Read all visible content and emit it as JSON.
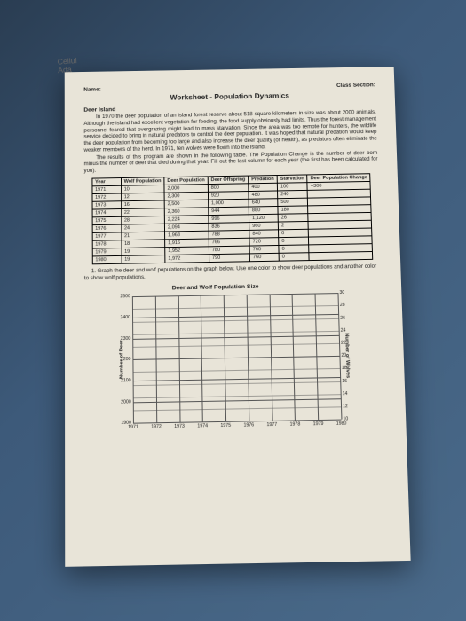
{
  "corner": {
    "l1": "Cellul",
    "l2": "Ada"
  },
  "header": {
    "name": "Name:",
    "section": "Class Section:"
  },
  "title": "Worksheet - Population Dynamics",
  "section_head": "Deer Island",
  "p1": "In 1970 the deer population of an island forest reserve about 518 square kilometers in size was about 2000 animals. Although the island had excellent vegetation for feeding, the food supply obviously had limits. Thus the forest management personnel feared that overgrazing might lead to mass starvation. Since the area was too remote for hunters, the wildlife service decided to bring in natural predators to control the deer population. It was hoped that natural predation would keep the deer population from becoming too large and also increase the deer quality (or health), as predators often eliminate the weaker members of the herd. In 1971, ten wolves were flown into the island.",
  "p2": "The results of this program are shown in the following table. The Population Change is the number of deer born minus the number of deer that died during that year. Fill out the last column for each year (the first has been calculated for you).",
  "table": {
    "headers": [
      "Year",
      "Wolf Population",
      "Deer Population",
      "Deer Offspring",
      "Predation",
      "Starvation",
      "Deer Population Change"
    ],
    "rows": [
      [
        "1971",
        "10",
        "2,000",
        "800",
        "400",
        "100",
        "+300"
      ],
      [
        "1972",
        "12",
        "2,300",
        "920",
        "480",
        "240",
        ""
      ],
      [
        "1973",
        "16",
        "2,500",
        "1,000",
        "640",
        "500",
        ""
      ],
      [
        "1974",
        "22",
        "2,360",
        "944",
        "880",
        "180",
        ""
      ],
      [
        "1975",
        "28",
        "2,224",
        "996",
        "1,120",
        "26",
        ""
      ],
      [
        "1976",
        "24",
        "2,094",
        "836",
        "960",
        "2",
        ""
      ],
      [
        "1977",
        "21",
        "1,968",
        "788",
        "840",
        "0",
        ""
      ],
      [
        "1978",
        "18",
        "1,916",
        "766",
        "720",
        "0",
        ""
      ],
      [
        "1979",
        "19",
        "1,952",
        "780",
        "760",
        "0",
        ""
      ],
      [
        "1980",
        "19",
        "1,972",
        "790",
        "760",
        "0",
        ""
      ]
    ]
  },
  "instr": "1. Graph the deer and wolf populations on the graph below. Use one color to show deer populations and another color to show wolf populations.",
  "chart": {
    "title": "Deer and Wolf Population Size",
    "y_left_label": "Number of Deer",
    "y_right_label": "Number of Wolves",
    "y_left": [
      "2500",
      "2400",
      "2300",
      "2200",
      "2100",
      "2000",
      "1900"
    ],
    "y_right": [
      "30",
      "28",
      "26",
      "24",
      "22",
      "20",
      "18",
      "16",
      "14",
      "12",
      "10"
    ],
    "x": [
      "1971",
      "1972",
      "1973",
      "1974",
      "1975",
      "1976",
      "1977",
      "1978",
      "1979",
      "1980"
    ],
    "grid_color": "#555"
  }
}
